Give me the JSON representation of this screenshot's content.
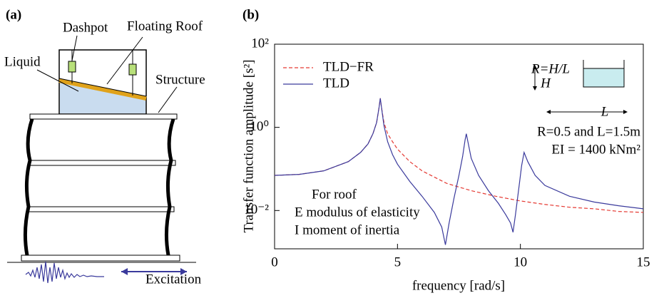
{
  "diagram": {
    "label": "(a)",
    "dashpot": "Dashpot",
    "roof": "Floating Roof",
    "liquid": "Liquid",
    "structure": "Structure",
    "excitation": "Excitation"
  },
  "chart_data": {
    "type": "line",
    "panel_label": "(b)",
    "xlabel": "frequency [rad/s]",
    "ylabel": "Transfer function amplitude [s²]",
    "log_y": true,
    "legend": "upper left",
    "xlim": [
      0,
      15
    ],
    "xticks": [
      0,
      5,
      10,
      15
    ],
    "ylim": [
      0.0012,
      100
    ],
    "yticks": [
      {
        "value": 100,
        "label": "10²"
      },
      {
        "value": 1,
        "label": "10⁰"
      },
      {
        "value": 0.01,
        "label": "10⁻²"
      }
    ],
    "annotations": [
      "R=H/L",
      "H",
      "L",
      "R=0.5 and L=1.5m",
      "EI = 1400 kNm²",
      "For roof",
      "E modulus of elasticity",
      "I moment of inertia"
    ],
    "series": [
      {
        "name": "TLD−FR",
        "color": "#e53a33",
        "dashed": true,
        "x": [
          0,
          1,
          2,
          3,
          3.5,
          3.8,
          4.0,
          4.15,
          4.25,
          4.3,
          4.35,
          4.45,
          4.6,
          4.8,
          5.0,
          5.5,
          6,
          7,
          8,
          9,
          10,
          11,
          12,
          13,
          14,
          15
        ],
        "values": [
          0.07,
          0.074,
          0.09,
          0.15,
          0.25,
          0.4,
          0.7,
          1.3,
          3,
          5,
          3,
          1.3,
          0.7,
          0.45,
          0.3,
          0.15,
          0.09,
          0.045,
          0.03,
          0.022,
          0.017,
          0.014,
          0.012,
          0.011,
          0.0095,
          0.009
        ]
      },
      {
        "name": "TLD",
        "color": "#3a3a9c",
        "dashed": false,
        "x": [
          0,
          1,
          2,
          3,
          3.5,
          3.8,
          4.0,
          4.15,
          4.25,
          4.3,
          4.35,
          4.45,
          4.6,
          4.8,
          5.0,
          5.5,
          6,
          6.5,
          6.8,
          6.95,
          7.1,
          7.3,
          7.5,
          7.65,
          7.75,
          7.8,
          7.85,
          8.0,
          8.3,
          8.7,
          9.1,
          9.4,
          9.6,
          9.7,
          9.8,
          9.95,
          10.05,
          10.15,
          10.3,
          10.6,
          11,
          12,
          13,
          14,
          15
        ],
        "values": [
          0.07,
          0.074,
          0.09,
          0.15,
          0.25,
          0.4,
          0.7,
          1.3,
          3,
          5,
          3,
          1.1,
          0.45,
          0.22,
          0.13,
          0.05,
          0.022,
          0.009,
          0.004,
          0.0015,
          0.005,
          0.02,
          0.07,
          0.2,
          0.5,
          0.7,
          0.5,
          0.18,
          0.07,
          0.03,
          0.015,
          0.008,
          0.005,
          0.003,
          0.008,
          0.04,
          0.12,
          0.25,
          0.15,
          0.07,
          0.04,
          0.022,
          0.016,
          0.013,
          0.011
        ]
      }
    ]
  }
}
